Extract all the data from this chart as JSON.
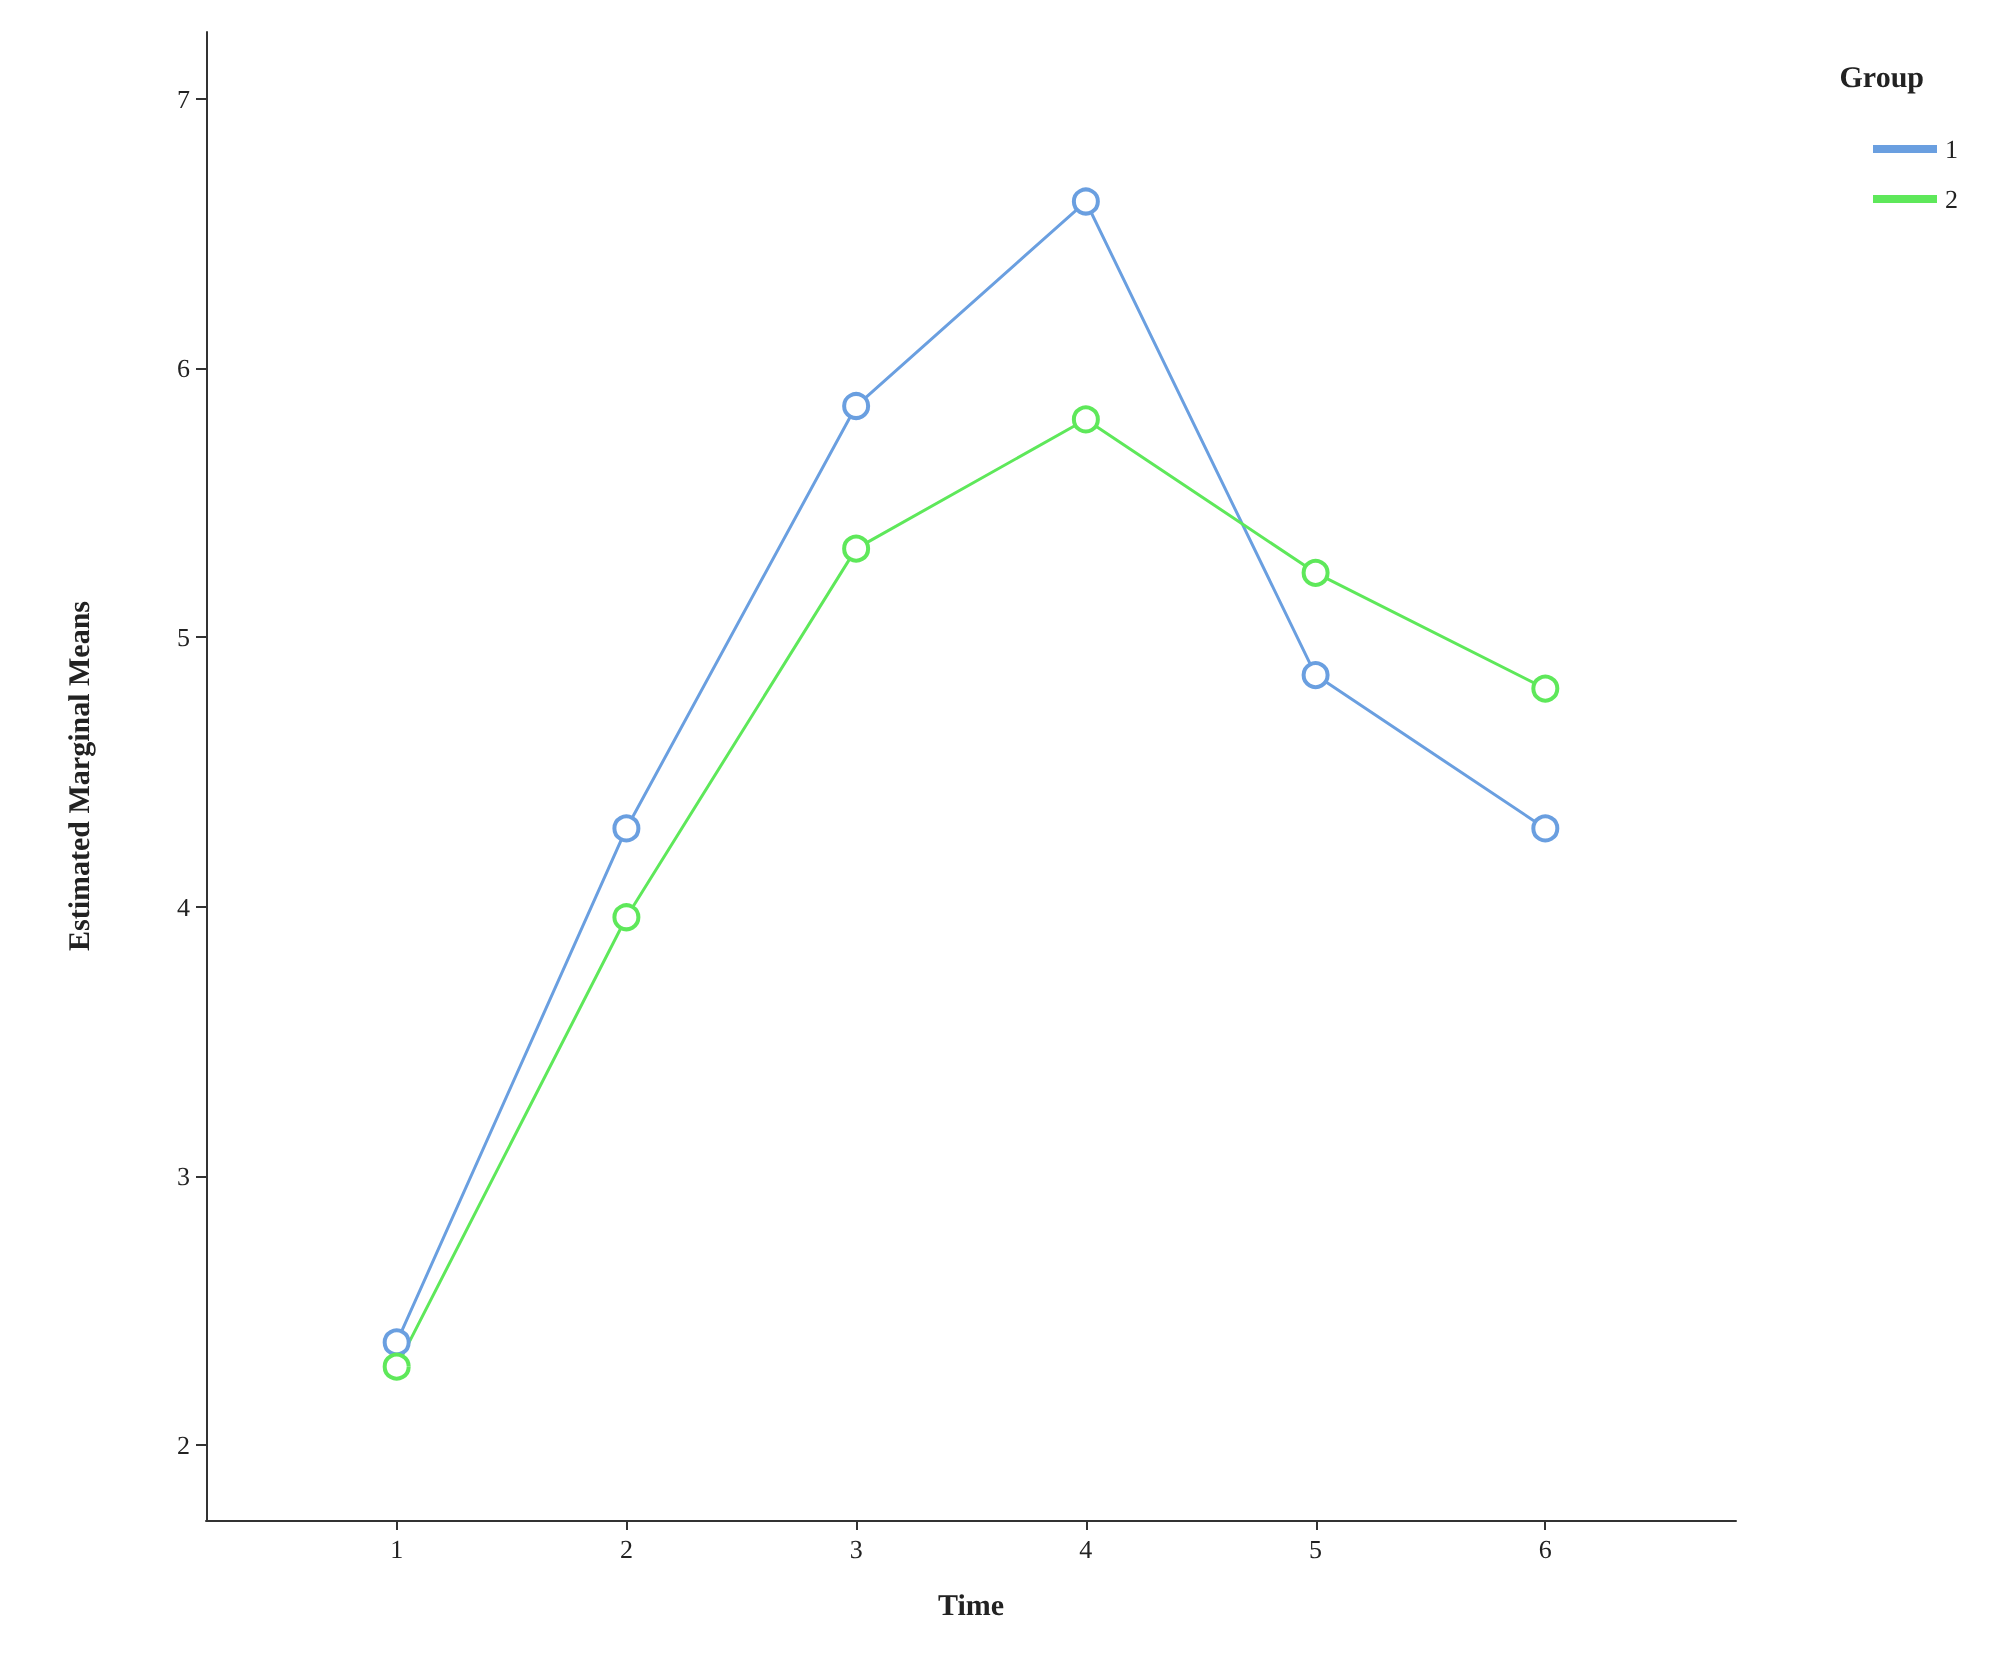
{
  "chart_data": {
    "type": "line",
    "xlabel": "Time",
    "ylabel": "Estimated Marginal Means",
    "legend_title": "Group",
    "x": [
      1,
      2,
      3,
      4,
      5,
      6
    ],
    "series": [
      {
        "name": "1",
        "color": "#6a9fe0",
        "values": [
          2.38,
          4.29,
          5.86,
          6.62,
          4.86,
          4.29
        ]
      },
      {
        "name": "2",
        "color": "#5ee85a",
        "values": [
          2.29,
          3.96,
          5.33,
          5.81,
          5.24,
          4.81
        ]
      }
    ],
    "xlim": [
      0.17,
      6.83
    ],
    "xticks": [
      1,
      2,
      3,
      4,
      5,
      6
    ],
    "ylim": [
      1.72,
      7.25
    ],
    "yticks": [
      2,
      3,
      4,
      5,
      6,
      7
    ],
    "grid": false,
    "legend": "top right",
    "marker": "circle",
    "line_style": "solid"
  }
}
